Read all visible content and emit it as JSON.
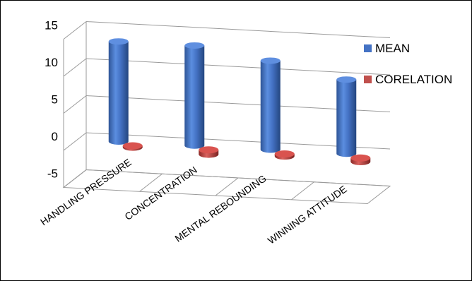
{
  "chart_data": {
    "type": "bar",
    "categories": [
      "HANDLING PRESSURE",
      "CONCENTRATION",
      "MENTAL REBOUNDING",
      "WINNING ATTITUDE"
    ],
    "series": [
      {
        "name": "MEAN",
        "values": [
          13.5,
          13.5,
          12,
          10
        ],
        "color": "#4472C4"
      },
      {
        "name": "CORELATION",
        "values": [
          -0.2,
          -0.6,
          -0.3,
          -0.5
        ],
        "color": "#C0504D"
      }
    ],
    "title": "",
    "xlabel": "",
    "ylabel": "",
    "ylim": [
      -5,
      15
    ],
    "yticks": [
      15,
      10,
      5,
      0,
      -5
    ],
    "grid": true,
    "legend_position": "right",
    "style": "3d-cylinder"
  }
}
